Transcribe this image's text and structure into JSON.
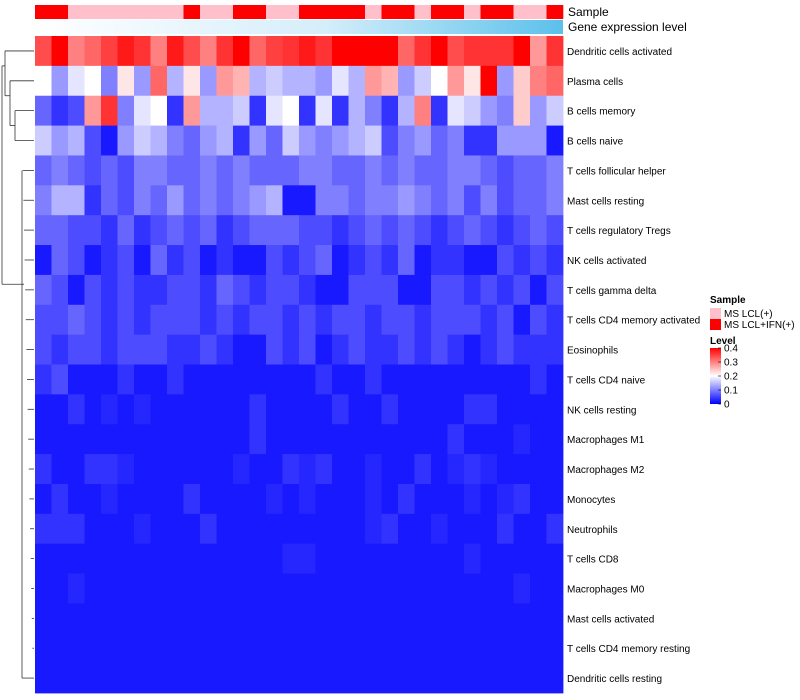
{
  "chart_data": {
    "type": "heatmap",
    "title": "",
    "annotation_tracks": [
      {
        "label": "Sample",
        "values": [
          1,
          1,
          0,
          0,
          0,
          0,
          0,
          0,
          0,
          1,
          0,
          0,
          1,
          1,
          0,
          0,
          1,
          1,
          1,
          1,
          0,
          1,
          1,
          0,
          1,
          1,
          0,
          1,
          1,
          0,
          0,
          1
        ]
      },
      {
        "label": "Gene expression level",
        "gradient_from": "#ffffff",
        "gradient_to": "#5bc0eb"
      }
    ],
    "rows": [
      "Dendritic cells activated",
      "Plasma cells",
      "B cells memory",
      "B cells naive",
      "T cells follicular helper",
      "Mast cells resting",
      "T cells regulatory  Tregs",
      "NK cells activated",
      "T cells gamma delta",
      "T cells CD4 memory activated",
      "Eosinophils",
      "T cells CD4 naive",
      "NK cells resting",
      "Macrophages M1",
      "Macrophages M2",
      "Monocytes",
      "Neutrophils",
      "T cells CD8",
      "Macrophages M0",
      "Mast cells activated",
      "T cells CD4 memory resting",
      "Dendritic cells resting"
    ],
    "n_columns": 32,
    "values": [
      [
        0.34,
        0.4,
        0.3,
        0.32,
        0.35,
        0.38,
        0.36,
        0.3,
        0.38,
        0.34,
        0.3,
        0.36,
        0.4,
        0.32,
        0.35,
        0.36,
        0.38,
        0.36,
        0.4,
        0.4,
        0.4,
        0.4,
        0.32,
        0.36,
        0.4,
        0.34,
        0.36,
        0.36,
        0.36,
        0.4,
        0.28,
        0.36
      ],
      [
        0.2,
        0.12,
        0.18,
        0.2,
        0.1,
        0.22,
        0.12,
        0.32,
        0.14,
        0.22,
        0.12,
        0.28,
        0.26,
        0.14,
        0.16,
        0.14,
        0.14,
        0.12,
        0.18,
        0.14,
        0.28,
        0.26,
        0.12,
        0.16,
        0.2,
        0.28,
        0.22,
        0.4,
        0.12,
        0.24,
        0.3,
        0.32
      ],
      [
        0.08,
        0.04,
        0.06,
        0.28,
        0.36,
        0.1,
        0.18,
        0.2,
        0.04,
        0.28,
        0.14,
        0.14,
        0.16,
        0.04,
        0.18,
        0.2,
        0.04,
        0.18,
        0.04,
        0.14,
        0.1,
        0.04,
        0.14,
        0.3,
        0.04,
        0.18,
        0.16,
        0.12,
        0.1,
        0.24,
        0.12,
        0.16
      ],
      [
        0.16,
        0.12,
        0.14,
        0.06,
        0.02,
        0.12,
        0.16,
        0.14,
        0.1,
        0.08,
        0.12,
        0.14,
        0.04,
        0.12,
        0.08,
        0.16,
        0.12,
        0.1,
        0.12,
        0.14,
        0.16,
        0.06,
        0.1,
        0.12,
        0.08,
        0.1,
        0.04,
        0.04,
        0.12,
        0.12,
        0.12,
        0.02
      ],
      [
        0.08,
        0.1,
        0.08,
        0.06,
        0.08,
        0.06,
        0.1,
        0.1,
        0.08,
        0.08,
        0.1,
        0.08,
        0.1,
        0.08,
        0.08,
        0.08,
        0.1,
        0.1,
        0.08,
        0.08,
        0.1,
        0.08,
        0.1,
        0.08,
        0.08,
        0.1,
        0.1,
        0.08,
        0.06,
        0.08,
        0.08,
        0.1
      ],
      [
        0.1,
        0.14,
        0.14,
        0.04,
        0.08,
        0.06,
        0.1,
        0.08,
        0.12,
        0.08,
        0.1,
        0.08,
        0.1,
        0.12,
        0.14,
        0.02,
        0.02,
        0.1,
        0.1,
        0.08,
        0.1,
        0.1,
        0.12,
        0.1,
        0.08,
        0.1,
        0.06,
        0.1,
        0.06,
        0.08,
        0.08,
        0.1
      ],
      [
        0.08,
        0.08,
        0.06,
        0.06,
        0.04,
        0.08,
        0.04,
        0.06,
        0.08,
        0.06,
        0.08,
        0.04,
        0.06,
        0.08,
        0.08,
        0.08,
        0.06,
        0.06,
        0.04,
        0.06,
        0.08,
        0.06,
        0.08,
        0.06,
        0.04,
        0.06,
        0.08,
        0.06,
        0.04,
        0.06,
        0.08,
        0.06
      ],
      [
        0.02,
        0.08,
        0.06,
        0.02,
        0.04,
        0.06,
        0.02,
        0.08,
        0.04,
        0.06,
        0.02,
        0.04,
        0.02,
        0.02,
        0.06,
        0.04,
        0.06,
        0.08,
        0.02,
        0.04,
        0.06,
        0.04,
        0.08,
        0.02,
        0.04,
        0.04,
        0.02,
        0.02,
        0.06,
        0.04,
        0.06,
        0.04
      ],
      [
        0.08,
        0.06,
        0.02,
        0.06,
        0.04,
        0.06,
        0.04,
        0.04,
        0.06,
        0.06,
        0.04,
        0.08,
        0.06,
        0.04,
        0.06,
        0.06,
        0.04,
        0.02,
        0.02,
        0.06,
        0.06,
        0.06,
        0.02,
        0.02,
        0.06,
        0.06,
        0.04,
        0.06,
        0.04,
        0.06,
        0.02,
        0.06
      ],
      [
        0.06,
        0.06,
        0.08,
        0.06,
        0.04,
        0.06,
        0.04,
        0.06,
        0.06,
        0.06,
        0.04,
        0.06,
        0.04,
        0.06,
        0.06,
        0.04,
        0.06,
        0.04,
        0.06,
        0.06,
        0.04,
        0.06,
        0.06,
        0.04,
        0.06,
        0.06,
        0.06,
        0.04,
        0.06,
        0.02,
        0.06,
        0.04
      ],
      [
        0.06,
        0.04,
        0.06,
        0.06,
        0.04,
        0.06,
        0.06,
        0.06,
        0.04,
        0.04,
        0.06,
        0.04,
        0.02,
        0.02,
        0.06,
        0.04,
        0.06,
        0.02,
        0.04,
        0.06,
        0.04,
        0.04,
        0.06,
        0.04,
        0.06,
        0.04,
        0.02,
        0.04,
        0.06,
        0.04,
        0.04,
        0.04
      ],
      [
        0.04,
        0.06,
        0.02,
        0.02,
        0.02,
        0.04,
        0.02,
        0.02,
        0.04,
        0.02,
        0.02,
        0.02,
        0.02,
        0.02,
        0.02,
        0.02,
        0.02,
        0.04,
        0.02,
        0.02,
        0.04,
        0.02,
        0.02,
        0.02,
        0.02,
        0.02,
        0.02,
        0.02,
        0.02,
        0.02,
        0.04,
        0.02
      ],
      [
        0.02,
        0.02,
        0.04,
        0.02,
        0.03,
        0.02,
        0.03,
        0.02,
        0.02,
        0.02,
        0.02,
        0.02,
        0.02,
        0.04,
        0.02,
        0.02,
        0.02,
        0.02,
        0.04,
        0.02,
        0.02,
        0.04,
        0.02,
        0.02,
        0.02,
        0.02,
        0.04,
        0.04,
        0.02,
        0.02,
        0.02,
        0.02
      ],
      [
        0.02,
        0.02,
        0.02,
        0.02,
        0.02,
        0.02,
        0.02,
        0.02,
        0.02,
        0.02,
        0.02,
        0.02,
        0.02,
        0.04,
        0.02,
        0.02,
        0.02,
        0.02,
        0.02,
        0.02,
        0.02,
        0.02,
        0.02,
        0.02,
        0.02,
        0.04,
        0.02,
        0.02,
        0.02,
        0.03,
        0.02,
        0.02
      ],
      [
        0.04,
        0.02,
        0.02,
        0.04,
        0.04,
        0.03,
        0.02,
        0.02,
        0.02,
        0.02,
        0.02,
        0.02,
        0.03,
        0.02,
        0.02,
        0.04,
        0.03,
        0.04,
        0.02,
        0.02,
        0.03,
        0.02,
        0.02,
        0.04,
        0.02,
        0.03,
        0.04,
        0.03,
        0.02,
        0.02,
        0.02,
        0.02
      ],
      [
        0.02,
        0.04,
        0.02,
        0.02,
        0.03,
        0.02,
        0.02,
        0.02,
        0.02,
        0.04,
        0.02,
        0.02,
        0.02,
        0.02,
        0.03,
        0.02,
        0.03,
        0.02,
        0.02,
        0.02,
        0.03,
        0.02,
        0.04,
        0.02,
        0.02,
        0.02,
        0.03,
        0.02,
        0.03,
        0.04,
        0.02,
        0.02
      ],
      [
        0.04,
        0.04,
        0.04,
        0.02,
        0.02,
        0.02,
        0.03,
        0.02,
        0.02,
        0.02,
        0.04,
        0.02,
        0.02,
        0.02,
        0.02,
        0.02,
        0.02,
        0.02,
        0.02,
        0.02,
        0.03,
        0.04,
        0.02,
        0.02,
        0.03,
        0.02,
        0.02,
        0.02,
        0.04,
        0.02,
        0.02,
        0.04
      ],
      [
        0.02,
        0.02,
        0.02,
        0.02,
        0.02,
        0.02,
        0.02,
        0.02,
        0.02,
        0.02,
        0.02,
        0.02,
        0.02,
        0.02,
        0.02,
        0.03,
        0.03,
        0.02,
        0.02,
        0.02,
        0.02,
        0.02,
        0.02,
        0.02,
        0.02,
        0.02,
        0.03,
        0.02,
        0.02,
        0.02,
        0.02,
        0.02
      ],
      [
        0.02,
        0.02,
        0.03,
        0.02,
        0.02,
        0.02,
        0.02,
        0.02,
        0.02,
        0.02,
        0.02,
        0.02,
        0.02,
        0.02,
        0.02,
        0.02,
        0.02,
        0.02,
        0.02,
        0.02,
        0.02,
        0.02,
        0.02,
        0.02,
        0.02,
        0.02,
        0.02,
        0.02,
        0.02,
        0.03,
        0.02,
        0.02
      ],
      [
        0.02,
        0.02,
        0.02,
        0.02,
        0.02,
        0.02,
        0.02,
        0.02,
        0.02,
        0.02,
        0.02,
        0.02,
        0.02,
        0.02,
        0.02,
        0.02,
        0.02,
        0.02,
        0.02,
        0.02,
        0.02,
        0.02,
        0.02,
        0.02,
        0.02,
        0.02,
        0.02,
        0.02,
        0.02,
        0.02,
        0.02,
        0.02
      ],
      [
        0.02,
        0.02,
        0.02,
        0.02,
        0.02,
        0.02,
        0.02,
        0.02,
        0.02,
        0.02,
        0.02,
        0.02,
        0.02,
        0.02,
        0.02,
        0.02,
        0.02,
        0.02,
        0.02,
        0.02,
        0.02,
        0.02,
        0.02,
        0.02,
        0.02,
        0.02,
        0.02,
        0.02,
        0.02,
        0.02,
        0.02,
        0.02
      ],
      [
        0.02,
        0.02,
        0.02,
        0.02,
        0.02,
        0.02,
        0.02,
        0.02,
        0.02,
        0.02,
        0.02,
        0.02,
        0.02,
        0.02,
        0.02,
        0.02,
        0.02,
        0.02,
        0.02,
        0.02,
        0.02,
        0.02,
        0.02,
        0.02,
        0.02,
        0.02,
        0.02,
        0.02,
        0.02,
        0.02,
        0.02,
        0.02
      ]
    ],
    "color_scale": {
      "label": "Level",
      "min": 0,
      "max": 0.4,
      "low_color": "#0000ff",
      "mid_color": "#ffffff",
      "mid_value": 0.2,
      "high_color": "#ff0000",
      "ticks": [
        "0.4",
        "0.3",
        "0.2",
        "0.1",
        "0"
      ],
      "tick_values": [
        0.4,
        0.3,
        0.2,
        0.1,
        0
      ]
    },
    "legend_sample": {
      "title": "Sample",
      "items": [
        {
          "label": "MS LCL(+)",
          "color": "#ffc0cb"
        },
        {
          "label": "MS LCL+IFN(+)",
          "color": "#ff0000"
        }
      ]
    },
    "dendrogram": "rows",
    "legend_position": "right"
  }
}
